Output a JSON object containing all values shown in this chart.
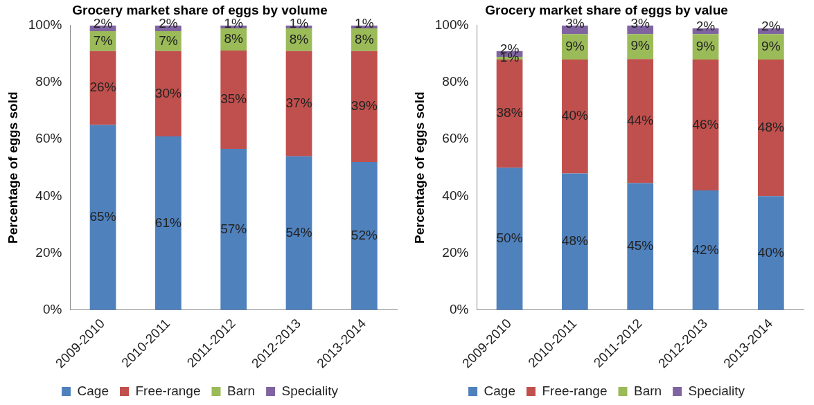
{
  "chart_data": [
    {
      "type": "bar",
      "title": "Grocery market share of eggs by volume",
      "ylabel": "Percentage of eggs sold",
      "categories": [
        "2009-2010",
        "2010-2011",
        "2011-2012",
        "2012-2013",
        "2013-2014"
      ],
      "stacked": true,
      "legend": "bottom",
      "grid": false,
      "ylim": [
        0,
        100
      ],
      "yticks": [
        {
          "value": 0,
          "label": "0%"
        },
        {
          "value": 20,
          "label": "20%"
        },
        {
          "value": 40,
          "label": "40%"
        },
        {
          "value": 60,
          "label": "60%"
        },
        {
          "value": 80,
          "label": "80%"
        },
        {
          "value": 100,
          "label": "100%"
        }
      ],
      "series": [
        {
          "name": "Cage",
          "color": "#4f81bd",
          "values": [
            65,
            61,
            56.6,
            54,
            52
          ],
          "value_labels": [
            "65%",
            "61%",
            "57%",
            "54%",
            "52%"
          ]
        },
        {
          "name": "Free-range",
          "color": "#c0504d",
          "values": [
            26,
            30,
            34.6,
            37,
            39
          ],
          "value_labels": [
            "26%",
            "30%",
            "35%",
            "37%",
            "39%"
          ]
        },
        {
          "name": "Barn",
          "color": "#9bbb59",
          "values": [
            7,
            7,
            7.8,
            8,
            8
          ],
          "value_labels": [
            "7%",
            "7%",
            "8%",
            "8%",
            "8%"
          ]
        },
        {
          "name": "Speciality",
          "color": "#8064a2",
          "values": [
            2,
            2,
            1,
            1,
            1
          ],
          "value_labels": [
            "2%",
            "2%",
            "1%",
            "1%",
            "1%"
          ]
        }
      ]
    },
    {
      "type": "bar",
      "title": "Grocery market share of eggs by value",
      "ylabel": "Percentage of eggs sold",
      "categories": [
        "2009-2010",
        "2010-2011",
        "2011-2012",
        "2012-2013",
        "2013-2014"
      ],
      "stacked": true,
      "legend": "bottom",
      "grid": false,
      "ylim": [
        0,
        100
      ],
      "yticks": [
        {
          "value": 0,
          "label": "0%"
        },
        {
          "value": 20,
          "label": "20%"
        },
        {
          "value": 40,
          "label": "40%"
        },
        {
          "value": 60,
          "label": "60%"
        },
        {
          "value": 80,
          "label": "80%"
        },
        {
          "value": 100,
          "label": "100%"
        }
      ],
      "series": [
        {
          "name": "Cage",
          "color": "#4f81bd",
          "values": [
            50,
            48,
            44.6,
            42,
            40
          ],
          "value_labels": [
            "50%",
            "48%",
            "45%",
            "42%",
            "40%"
          ]
        },
        {
          "name": "Free-range",
          "color": "#c0504d",
          "values": [
            38,
            40,
            43.6,
            46,
            48
          ],
          "value_labels": [
            "38%",
            "40%",
            "44%",
            "46%",
            "48%"
          ]
        },
        {
          "name": "Barn",
          "color": "#9bbb59",
          "values": [
            1,
            9,
            8.8,
            9,
            9
          ],
          "value_labels": [
            "1%",
            "9%",
            "9%",
            "9%",
            "9%"
          ]
        },
        {
          "name": "Speciality",
          "color": "#8064a2",
          "values": [
            2,
            3,
            3,
            2,
            2
          ],
          "value_labels": [
            "2%",
            "3%",
            "3%",
            "2%",
            "2%"
          ]
        }
      ]
    }
  ]
}
